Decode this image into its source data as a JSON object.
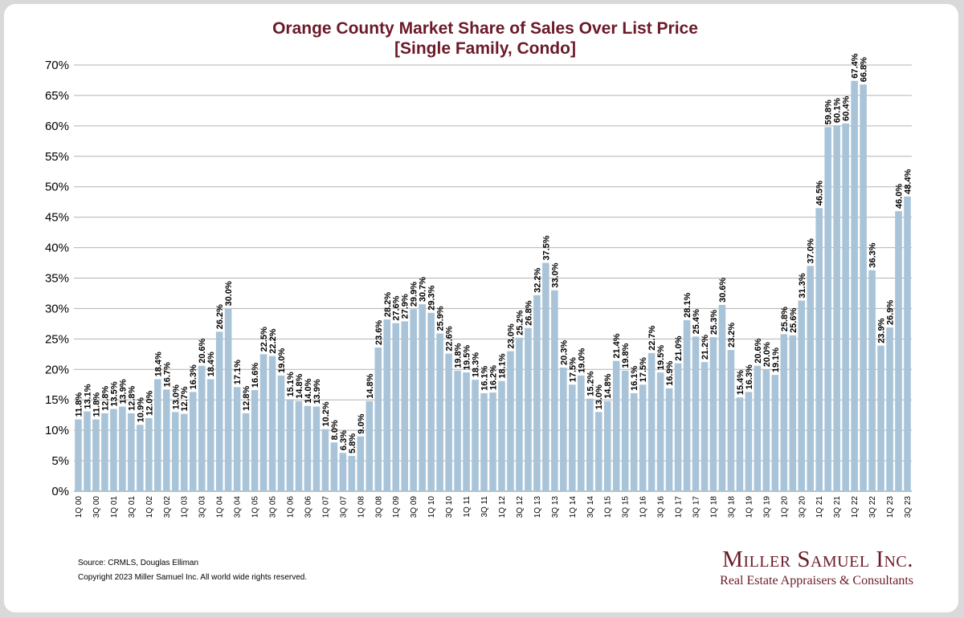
{
  "chart_data": {
    "type": "bar",
    "title": "Orange County Market Share of Sales Over List Price",
    "subtitle": "[Single Family, Condo]",
    "xlabel": "",
    "ylabel": "",
    "ylim": [
      0,
      70
    ],
    "yticks": [
      "0%",
      "5%",
      "10%",
      "15%",
      "20%",
      "25%",
      "30%",
      "35%",
      "40%",
      "45%",
      "50%",
      "55%",
      "60%",
      "65%",
      "70%"
    ],
    "grid": true,
    "bar_color": "#a9c4d8",
    "categories": [
      "1Q 00",
      "2Q 00",
      "3Q 00",
      "4Q 00",
      "1Q 01",
      "2Q 01",
      "3Q 01",
      "4Q 01",
      "1Q 02",
      "2Q 02",
      "3Q 02",
      "4Q 02",
      "1Q 03",
      "2Q 03",
      "3Q 03",
      "4Q 03",
      "1Q 04",
      "2Q 04",
      "3Q 04",
      "4Q 04",
      "1Q 05",
      "2Q 05",
      "3Q 05",
      "4Q 05",
      "1Q 06",
      "2Q 06",
      "3Q 06",
      "4Q 06",
      "1Q 07",
      "2Q 07",
      "3Q 07",
      "4Q 07",
      "1Q 08",
      "2Q 08",
      "3Q 08",
      "4Q 08",
      "1Q 09",
      "2Q 09",
      "3Q 09",
      "4Q 09",
      "1Q 10",
      "2Q 10",
      "3Q 10",
      "4Q 10",
      "1Q 11",
      "2Q 11",
      "3Q 11",
      "4Q 11",
      "1Q 12",
      "2Q 12",
      "3Q 12",
      "4Q 12",
      "1Q 13",
      "2Q 13",
      "3Q 13",
      "4Q 13",
      "1Q 14",
      "2Q 14",
      "3Q 14",
      "4Q 14",
      "1Q 15",
      "2Q 15",
      "3Q 15",
      "4Q 15",
      "1Q 16",
      "2Q 16",
      "3Q 16",
      "4Q 16",
      "1Q 17",
      "2Q 17",
      "3Q 17",
      "4Q 17",
      "1Q 18",
      "2Q 18",
      "3Q 18",
      "4Q 18",
      "1Q 19",
      "2Q 19",
      "3Q 19",
      "4Q 19",
      "1Q 20",
      "2Q 20",
      "3Q 20",
      "4Q 20",
      "1Q 21",
      "2Q 21",
      "3Q 21",
      "4Q 21",
      "1Q 22",
      "2Q 22",
      "3Q 22",
      "4Q 22",
      "1Q 23",
      "2Q 23",
      "3Q 23"
    ],
    "values": [
      11.8,
      13.1,
      11.8,
      12.8,
      13.5,
      13.9,
      12.8,
      10.9,
      12.0,
      18.4,
      16.7,
      13.0,
      12.7,
      16.3,
      20.6,
      18.4,
      26.2,
      30.0,
      17.1,
      12.8,
      16.6,
      22.5,
      22.2,
      19.0,
      15.1,
      14.8,
      14.0,
      13.9,
      10.2,
      8.0,
      6.3,
      5.8,
      9.0,
      14.8,
      23.6,
      28.2,
      27.6,
      27.9,
      29.9,
      30.7,
      29.3,
      25.9,
      22.6,
      19.8,
      19.5,
      18.3,
      16.1,
      16.2,
      18.1,
      23.0,
      25.2,
      26.8,
      32.2,
      37.5,
      33.0,
      20.3,
      17.5,
      19.0,
      15.2,
      13.0,
      14.8,
      21.4,
      19.8,
      16.1,
      17.5,
      22.7,
      19.5,
      16.9,
      21.0,
      28.1,
      25.4,
      21.2,
      25.3,
      30.6,
      23.2,
      15.4,
      16.3,
      20.6,
      20.0,
      19.1,
      25.8,
      25.6,
      31.3,
      37.0,
      46.5,
      59.8,
      60.1,
      60.4,
      67.4,
      66.8,
      36.3,
      23.9,
      26.9,
      46.0,
      48.4
    ],
    "data_labels": [
      "11.8%",
      "13.1%",
      "11.8%",
      "12.8%",
      "13.5%",
      "13.9%",
      "12.8%",
      "10.9%",
      "12.0%",
      "18.4%",
      "16.7%",
      "13.0%",
      "12.7%",
      "16.3%",
      "20.6%",
      "18.4%",
      "26.2%",
      "30.0%",
      "17.1%",
      "12.8%",
      "16.6%",
      "22.5%",
      "22.2%",
      "19.0%",
      "15.1%",
      "14.8%",
      "14.0%",
      "13.9%",
      "10.2%",
      "8.0%",
      "6.3%",
      "5.8%",
      "9.0%",
      "14.8%",
      "23.6%",
      "28.2%",
      "27.6%",
      "27.9%",
      "29.9%",
      "30.7%",
      "29.3%",
      "25.9%",
      "22.6%",
      "19.8%",
      "19.5%",
      "18.3%",
      "16.1%",
      "16.2%",
      "18.1%",
      "23.0%",
      "25.2%",
      "26.8%",
      "32.2%",
      "37.5%",
      "33.0%",
      "20.3%",
      "17.5%",
      "19.0%",
      "15.2%",
      "13.0%",
      "14.8%",
      "21.4%",
      "19.8%",
      "16.1%",
      "17.5%",
      "22.7%",
      "19.5%",
      "16.9%",
      "21.0%",
      "28.1%",
      "25.4%",
      "21.2%",
      "25.3%",
      "30.6%",
      "23.2%",
      "15.4%",
      "16.3%",
      "20.6%",
      "20.0%",
      "19.1%",
      "25.8%",
      "25.6%",
      "31.3%",
      "37.0%",
      "46.5%",
      "59.8%",
      "60.1%",
      "60.4%",
      "67.4%",
      "66.8%",
      "36.3%",
      "23.9%",
      "26.9%",
      "46.0%",
      "48.4%"
    ],
    "xtick_labels": [
      "1Q 00",
      "",
      "3Q 00",
      "",
      "1Q 01",
      "",
      "3Q 01",
      "",
      "1Q 02",
      "",
      "3Q 02",
      "",
      "1Q 03",
      "",
      "3Q 03",
      "",
      "1Q 04",
      "",
      "3Q 04",
      "",
      "1Q 05",
      "",
      "3Q 05",
      "",
      "1Q 06",
      "",
      "3Q 06",
      "",
      "1Q 07",
      "",
      "3Q 07",
      "",
      "1Q 08",
      "",
      "3Q 08",
      "",
      "1Q 09",
      "",
      "3Q 09",
      "",
      "1Q 10",
      "",
      "3Q 10",
      "",
      "1Q 11",
      "",
      "3Q 11",
      "",
      "1Q 12",
      "",
      "3Q 12",
      "",
      "1Q 13",
      "",
      "3Q 13",
      "",
      "1Q 14",
      "",
      "3Q 14",
      "",
      "1Q 15",
      "",
      "3Q 15",
      "",
      "1Q 16",
      "",
      "3Q 16",
      "",
      "1Q 17",
      "",
      "3Q 17",
      "",
      "1Q 18",
      "",
      "3Q 18",
      "",
      "1Q 19",
      "",
      "3Q 19",
      "",
      "1Q 20",
      "",
      "3Q 20",
      "",
      "1Q 21",
      "",
      "3Q 21",
      "",
      "1Q 22",
      "",
      "3Q 22",
      "",
      "1Q 23",
      "",
      "3Q 23"
    ]
  },
  "footer": {
    "source": "Source: CRMLS, Douglas Elliman",
    "copyright": "Copyright 2023 Miller Samuel Inc.  All world wide rights reserved."
  },
  "logo": {
    "name": "Miller Samuel Inc.",
    "tagline": "Real Estate Appraisers & Consultants"
  }
}
